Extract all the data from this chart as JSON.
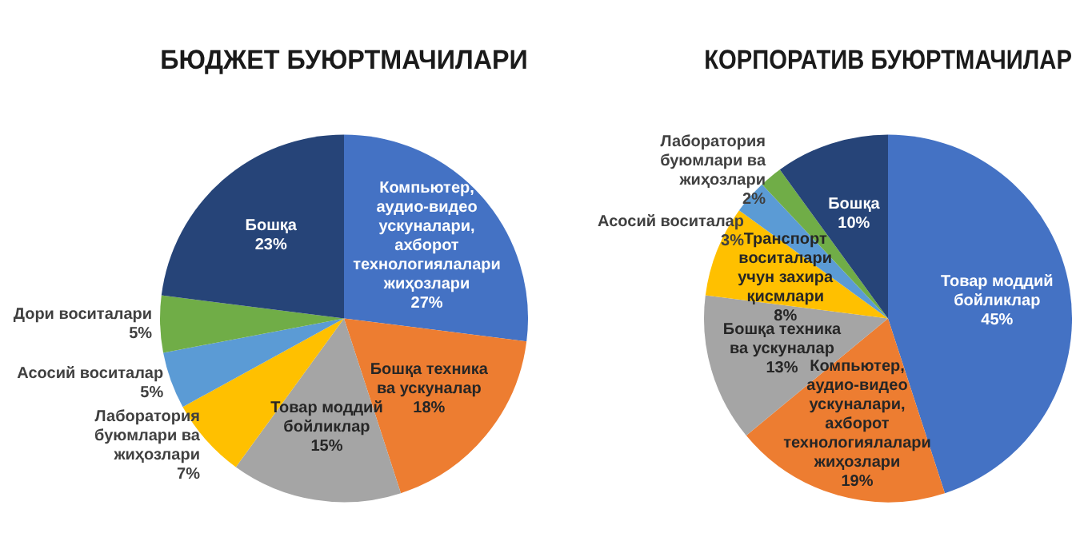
{
  "chart_data": [
    {
      "type": "pie",
      "title": "БЮДЖЕТ БУЮРТМАЧИЛАРИ",
      "categories": [
        "Компьютер, аудио-видео ускуналари, ахборот технологиялалари жиҳозлари",
        "Бошқа техника ва ускуналар",
        "Товар моддий бойликлар",
        "Лаборатория буюмлари ва жиҳозлари",
        "Асосий воситалар",
        "Дори воситалари",
        "Бошқа"
      ],
      "values": [
        27,
        18,
        15,
        7,
        5,
        5,
        23
      ],
      "value_labels": [
        "27%",
        "18%",
        "15%",
        "7%",
        "5%",
        "5%",
        "23%"
      ],
      "colors": [
        "#4472c4",
        "#ed7d31",
        "#a5a5a5",
        "#ffc000",
        "#5b9bd5",
        "#70ad47",
        "#264478"
      ],
      "legend": false
    },
    {
      "type": "pie",
      "title": "КОРПОРАТИВ БУЮРТМАЧИЛАР",
      "categories": [
        "Товар моддий бойликлар",
        "Компьютер, аудио-видео ускуналари, ахборот технологиялалари жиҳозлари",
        "Бошқа техника ва ускуналар",
        "Транспорт воситалари учун захира қисмлари",
        "Асосий воситалар",
        "Лаборатория буюмлари ва жиҳозлари",
        "Бошқа"
      ],
      "values": [
        45,
        19,
        13,
        8,
        3,
        2,
        10
      ],
      "value_labels": [
        "45%",
        "19%",
        "13%",
        "8%",
        "3%",
        "2%",
        "10%"
      ],
      "colors": [
        "#4472c4",
        "#ed7d31",
        "#a5a5a5",
        "#ffc000",
        "#5b9bd5",
        "#70ad47",
        "#264478"
      ],
      "legend": false
    }
  ]
}
